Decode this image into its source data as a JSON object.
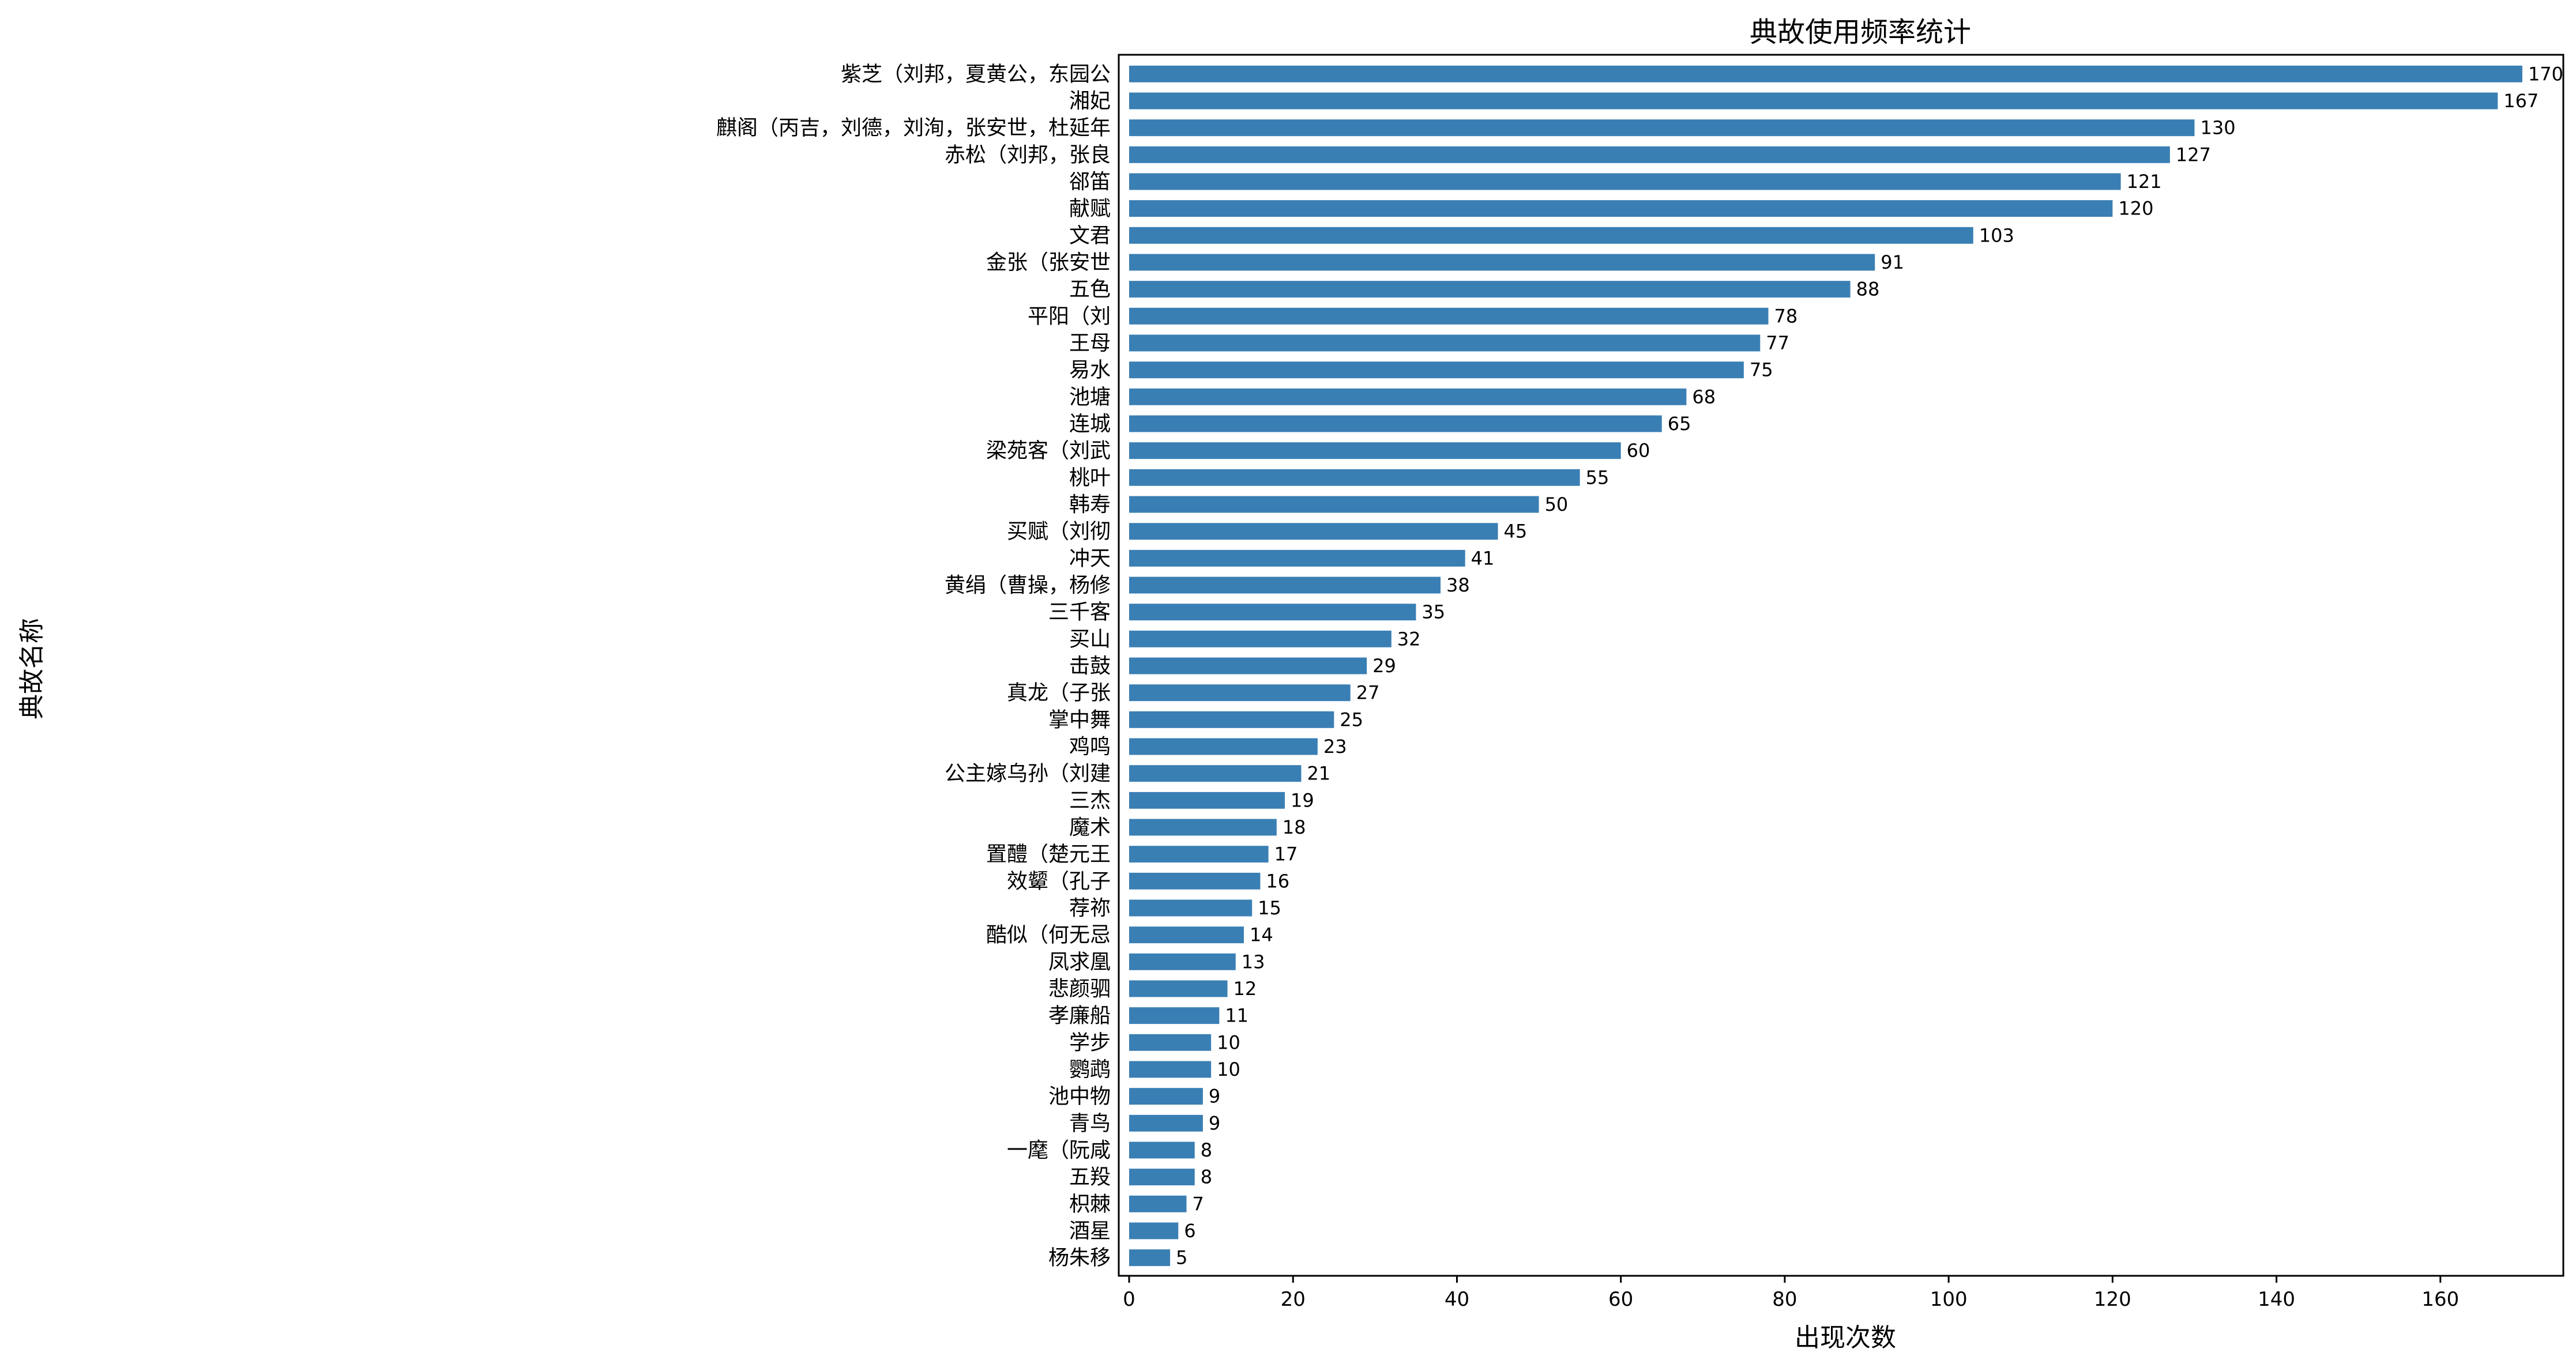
{
  "chart_data": {
    "type": "bar",
    "orientation": "horizontal",
    "title": "典故使用频率统计",
    "xlabel": "出现次数",
    "ylabel": "典故名称",
    "xlim": [
      0,
      175
    ],
    "xticks": [
      0,
      20,
      40,
      60,
      80,
      100,
      120,
      140,
      160
    ],
    "grid": false,
    "legend": "none",
    "bar_color": "#3a7fb4",
    "categories": [
      "紫芝（刘邦，夏黄公，东园公",
      "湘妃",
      "麒阁（丙吉，刘德，刘洵，张安世，杜延年",
      "赤松（刘邦，张良",
      "郤笛",
      "献赋",
      "文君",
      "金张（张安世",
      "五色",
      "平阳（刘",
      "王母",
      "易水",
      "池塘",
      "连城",
      "梁苑客（刘武",
      "桃叶",
      "韩寿",
      "买赋（刘彻",
      "冲天",
      "黄绢（曹操，杨修",
      "三千客",
      "买山",
      "击鼓",
      "真龙（子张",
      "掌中舞",
      "鸡鸣",
      "公主嫁乌孙（刘建",
      "三杰",
      "魔术",
      "置醴（楚元王",
      "效颦（孔子",
      "荐祢",
      "酷似（何无忌",
      "凤求凰",
      "悲颜驷",
      "孝廉船",
      "学步",
      "鹦鹉",
      "池中物",
      "青鸟",
      "一麾（阮咸",
      "五羖",
      "枳棘",
      "酒星",
      "杨朱移"
    ],
    "values": [
      170,
      167,
      130,
      127,
      121,
      120,
      103,
      91,
      88,
      78,
      77,
      75,
      68,
      65,
      60,
      55,
      50,
      45,
      41,
      38,
      35,
      32,
      29,
      27,
      25,
      23,
      21,
      19,
      18,
      17,
      16,
      15,
      14,
      13,
      12,
      11,
      10,
      10,
      9,
      9,
      8,
      8,
      7,
      6,
      5
    ],
    "data_labels": [
      "170",
      "167",
      "130",
      "127",
      "121",
      "120",
      "103",
      "91",
      "88",
      "78",
      "77",
      "75",
      "68",
      "65",
      "60",
      "55",
      "50",
      "45",
      "41",
      "38",
      "35",
      "32",
      "29",
      "27",
      "25",
      "23",
      "21",
      "19",
      "18",
      "17",
      "16",
      "15",
      "14",
      "13",
      "12",
      "11",
      "10",
      "10",
      "9",
      "9",
      "8",
      "8",
      "7",
      "6",
      "5"
    ]
  }
}
